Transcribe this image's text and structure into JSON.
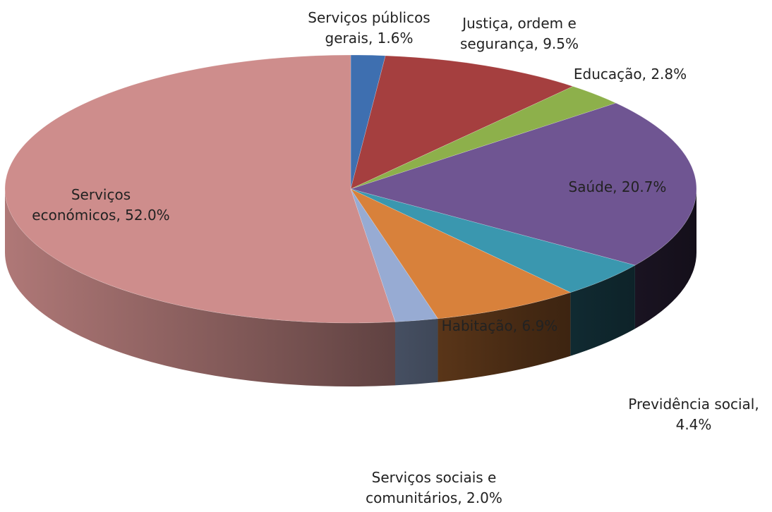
{
  "chart_data": {
    "type": "pie",
    "title": "",
    "style": "3d",
    "slices": [
      {
        "label_lines": [
          "Serviços públicos",
          "gerais, 1.6%"
        ],
        "value": 1.6,
        "color": "#3E6FB0"
      },
      {
        "label_lines": [
          "Justiça, ordem e",
          "segurança, 9.5%"
        ],
        "value": 9.5,
        "color": "#A53F3F"
      },
      {
        "label_lines": [
          "Educação, 2.8%"
        ],
        "value": 2.8,
        "color": "#8DB04B"
      },
      {
        "label_lines": [
          "Saúde, 20.7%"
        ],
        "value": 20.7,
        "color": "#6F5592"
      },
      {
        "label_lines": [
          "Previdência social,",
          "4.4%"
        ],
        "value": 4.4,
        "color": "#3A97AF"
      },
      {
        "label_lines": [
          "Habitação, 6.9%"
        ],
        "value": 6.9,
        "color": "#D8813B"
      },
      {
        "label_lines": [
          "Serviços sociais e",
          "comunitários, 2.0%"
        ],
        "value": 2.0,
        "color": "#97ABD3"
      },
      {
        "label_lines": [
          "Serviços",
          "económicos, 52.0%"
        ],
        "value": 52.0,
        "color": "#CE8D8C"
      }
    ]
  }
}
